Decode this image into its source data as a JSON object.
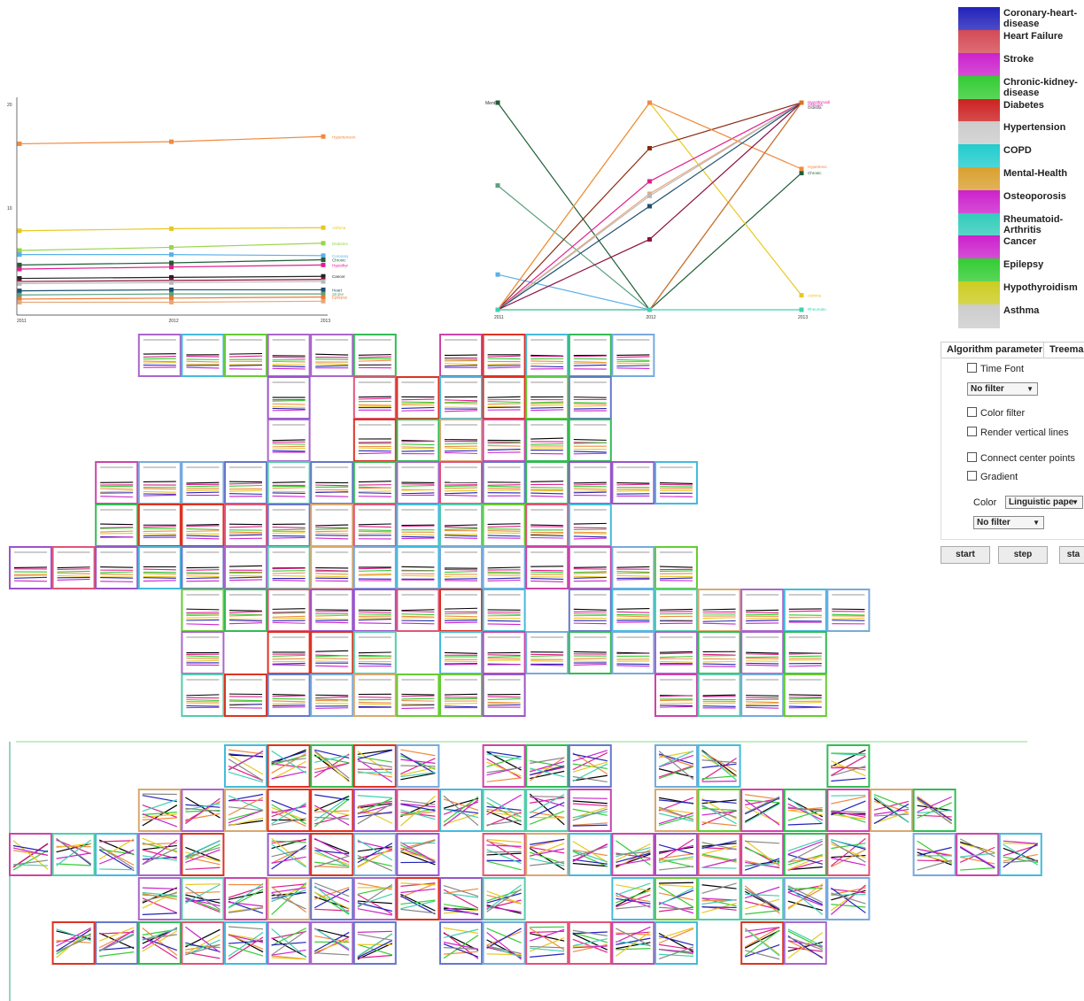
{
  "legend": {
    "items": [
      {
        "label": "Coronary-heart-disease",
        "color": "#2222bb"
      },
      {
        "label": "Heart Failure",
        "color": "#d44a55"
      },
      {
        "label": "Stroke",
        "color": "#cc22cc"
      },
      {
        "label": "Chronic-kidney-disease",
        "color": "#33cc33"
      },
      {
        "label": "Diabetes",
        "color": "#cc2222"
      },
      {
        "label": "Hypertension",
        "color": "#cccccc"
      },
      {
        "label": "COPD",
        "color": "#22cccc"
      },
      {
        "label": "Mental-Health",
        "color": "#d9a030"
      },
      {
        "label": "Osteoporosis",
        "color": "#cc22cc"
      },
      {
        "label": "Rheumatoid-Arthritis",
        "color": "#33ccbb"
      },
      {
        "label": "Cancer",
        "color": "#cc22cc"
      },
      {
        "label": "Epilepsy",
        "color": "#33cc33"
      },
      {
        "label": "Hypothyroidism",
        "color": "#cccc22"
      },
      {
        "label": "Asthma",
        "color": "#cccccc"
      }
    ]
  },
  "controls": {
    "tabs": [
      "Algorithm parameters",
      "Treema"
    ],
    "time_font_label": "Time Font",
    "filter_select_1": "No filter",
    "color_filter_label": "Color filter",
    "vertical_lines_label": "Render vertical lines",
    "connect_center_label": "Connect center points",
    "gradient_label": "Gradient",
    "color_label": "Color",
    "color_select": "Linguistic pape",
    "filter_select_2": "No filter",
    "buttons": [
      "start",
      "step",
      "sta"
    ]
  },
  "chart_data": [
    {
      "type": "line",
      "x": [
        "2011",
        "2012",
        "2013"
      ],
      "ylim": [
        0,
        20
      ],
      "yticks": [
        "20",
        "10"
      ],
      "series": [
        {
          "name": "Hypertension",
          "color": "#f08a40",
          "values": [
            16.2,
            16.4,
            16.9
          ]
        },
        {
          "name": "Asthma",
          "color": "#e8c820",
          "values": [
            7.8,
            8.0,
            8.1
          ]
        },
        {
          "name": "Diabetes",
          "color": "#9ad44a",
          "values": [
            5.9,
            6.2,
            6.6
          ]
        },
        {
          "name": "Coronary",
          "color": "#5ab0e8",
          "values": [
            5.5,
            5.5,
            5.4
          ]
        },
        {
          "name": "Chronic",
          "color": "#1e5e36",
          "values": [
            4.5,
            4.7,
            5.0
          ]
        },
        {
          "name": "Hypothyr",
          "color": "#e01e8c",
          "values": [
            4.1,
            4.3,
            4.5
          ]
        },
        {
          "name": "Cancer",
          "color": "#222222",
          "values": [
            3.2,
            3.3,
            3.4
          ]
        },
        {
          "name": "",
          "color": "#8b1040",
          "values": [
            2.9,
            3.0,
            3.1
          ]
        },
        {
          "name": "",
          "color": "#b8b8b8",
          "values": [
            2.7,
            2.8,
            2.9
          ]
        },
        {
          "name": "Heart",
          "color": "#1e5070",
          "values": [
            2.0,
            2.1,
            2.1
          ]
        },
        {
          "name": "Stroke",
          "color": "#5aa080",
          "values": [
            1.6,
            1.7,
            1.7
          ]
        },
        {
          "name": "Epilepsy",
          "color": "#f07830",
          "values": [
            1.2,
            1.3,
            1.4
          ]
        },
        {
          "name": "",
          "color": "#e8a878",
          "values": [
            0.9,
            0.9,
            1.0
          ]
        }
      ]
    },
    {
      "type": "line",
      "x": [
        "2011",
        "2012",
        "2013"
      ],
      "ylim": [
        0,
        1
      ],
      "series": [
        {
          "name": "Ment",
          "color": "#1e5e36",
          "values": [
            1.0,
            0.0,
            0.66
          ]
        },
        {
          "name": "",
          "color": "#5aa080",
          "values": [
            0.6,
            0.0,
            1.0
          ]
        },
        {
          "name": "",
          "color": "#5ab0e8",
          "values": [
            0.17,
            0.0,
            1.0
          ]
        },
        {
          "name": "Asthma",
          "color": "#e8c820",
          "values": [
            0.0,
            1.0,
            0.07
          ]
        },
        {
          "name": "",
          "color": "#8b2a10",
          "values": [
            0.0,
            0.78,
            1.0
          ]
        },
        {
          "name": "",
          "color": "#e01e8c",
          "values": [
            0.0,
            0.62,
            1.0
          ]
        },
        {
          "name": "Hypertensi",
          "color": "#f08a40",
          "values": [
            0.0,
            1.0,
            0.68
          ]
        },
        {
          "name": "",
          "color": "#e8a878",
          "values": [
            0.0,
            0.56,
            1.0
          ]
        },
        {
          "name": "",
          "color": "#b8b8b8",
          "values": [
            0.0,
            0.55,
            1.0
          ]
        },
        {
          "name": "",
          "color": "#1e5070",
          "values": [
            0.0,
            0.5,
            1.0
          ]
        },
        {
          "name": "",
          "color": "#8b1040",
          "values": [
            0.0,
            0.34,
            1.0
          ]
        },
        {
          "name": "",
          "color": "#e07020",
          "values": [
            0.0,
            0.0,
            1.0
          ]
        },
        {
          "name": "Rheumato",
          "color": "#40d0b0",
          "values": [
            0.0,
            0.0,
            0.0
          ]
        }
      ],
      "end_labels": [
        "Hypothyroidi",
        "Osteopo",
        "Ostebla",
        "Hypertensi",
        "Chronic"
      ],
      "start_label": "Ment"
    }
  ]
}
